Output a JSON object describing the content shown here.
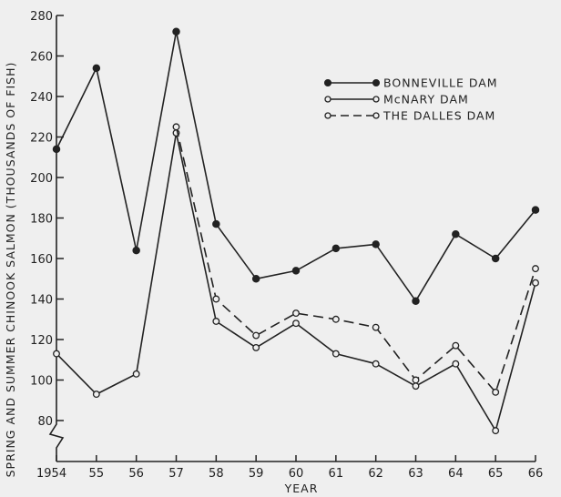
{
  "chart_data": {
    "type": "line",
    "title": "",
    "xlabel": "YEAR",
    "ylabel": "SPRING AND SUMMER CHINOOK SALMON (THOUSANDS OF FISH)",
    "x": [
      "1954",
      "55",
      "56",
      "57",
      "58",
      "59",
      "60",
      "61",
      "62",
      "63",
      "64",
      "65",
      "66"
    ],
    "ylim": [
      60,
      280
    ],
    "yticks": [
      80,
      100,
      120,
      140,
      160,
      180,
      200,
      220,
      240,
      260,
      280
    ],
    "axis_break": true,
    "grid": false,
    "legend_position": "top-right",
    "series": [
      {
        "name": "BONNEVILLE DAM",
        "style": "solid",
        "marker": "filled-circle",
        "values": [
          214,
          254,
          164,
          272,
          177,
          150,
          154,
          165,
          167,
          139,
          172,
          160,
          184
        ]
      },
      {
        "name": "McNARY DAM",
        "style": "solid",
        "marker": "open-circle",
        "values": [
          113,
          93,
          103,
          222,
          129,
          116,
          128,
          113,
          108,
          97,
          108,
          75,
          148
        ]
      },
      {
        "name": "THE DALLES DAM",
        "style": "dashed",
        "marker": "open-circle",
        "values": [
          null,
          null,
          null,
          225,
          140,
          122,
          133,
          130,
          126,
          100,
          117,
          94,
          155
        ]
      }
    ]
  }
}
